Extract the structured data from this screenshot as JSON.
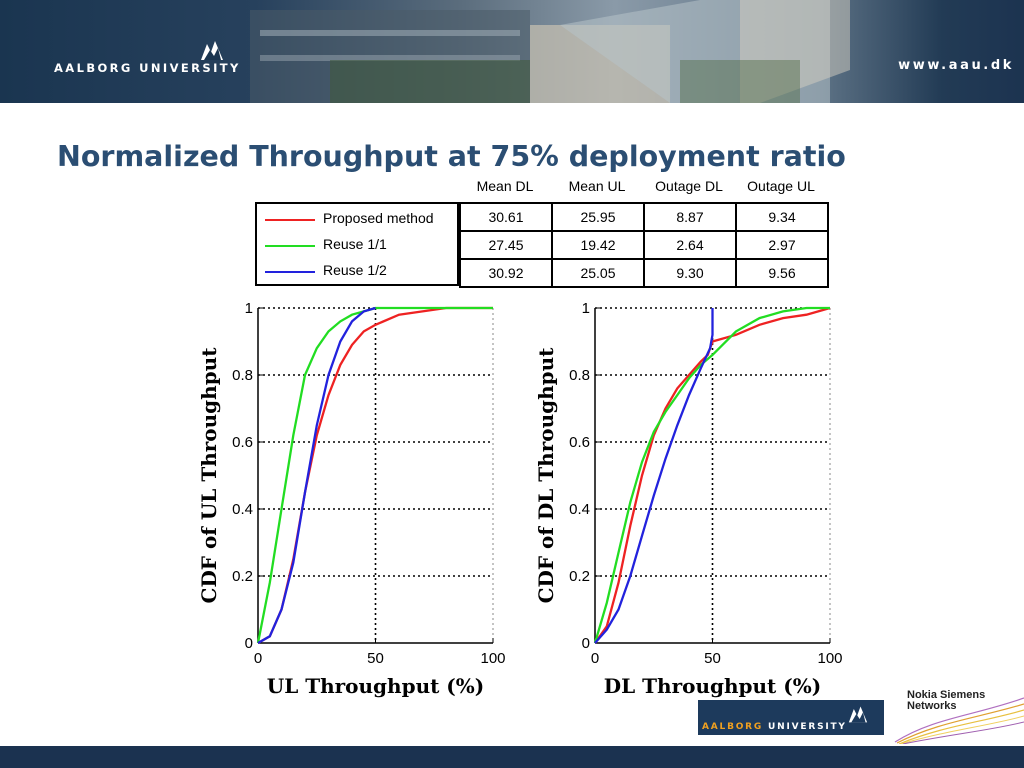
{
  "header": {
    "brand_part1": "AALBORG",
    "brand_part2": "UNIVERSITY",
    "url": "www.aau.dk"
  },
  "title": "Normalized Throughput at 75% deployment ratio",
  "table": {
    "columns": [
      "Mean DL",
      "Mean UL",
      "Outage DL",
      "Outage UL"
    ],
    "rows": [
      {
        "label": "Proposed method",
        "color": "#ee2222",
        "values": [
          "30.61",
          "25.95",
          "8.87",
          "9.34"
        ]
      },
      {
        "label": "Reuse 1/1",
        "color": "#22dd22",
        "values": [
          "27.45",
          "19.42",
          "2.64",
          "2.97"
        ]
      },
      {
        "label": "Reuse 1/2",
        "color": "#2222dd",
        "values": [
          "30.92",
          "25.05",
          "9.30",
          "9.56"
        ]
      }
    ]
  },
  "chart_data": [
    {
      "type": "line",
      "xlabel": "UL Throughput (%)",
      "ylabel": "CDF of UL Throughput",
      "xlim": [
        0,
        100
      ],
      "ylim": [
        0,
        1
      ],
      "xticks": [
        "0",
        "50",
        "100"
      ],
      "yticks": [
        "0",
        "0.2",
        "0.4",
        "0.6",
        "0.8",
        "1"
      ],
      "grid": true,
      "series": [
        {
          "name": "Proposed method",
          "color": "#ee2222",
          "x": [
            0,
            5,
            10,
            15,
            20,
            25,
            30,
            35,
            40,
            45,
            50,
            60,
            70,
            80,
            90,
            100
          ],
          "y": [
            0,
            0.02,
            0.1,
            0.25,
            0.45,
            0.62,
            0.74,
            0.83,
            0.89,
            0.93,
            0.95,
            0.98,
            0.99,
            1.0,
            1.0,
            1.0
          ]
        },
        {
          "name": "Reuse 1/1",
          "color": "#22dd22",
          "x": [
            0,
            5,
            10,
            15,
            20,
            25,
            30,
            35,
            40,
            45,
            50,
            60,
            70,
            80,
            90,
            100
          ],
          "y": [
            0,
            0.18,
            0.4,
            0.62,
            0.8,
            0.88,
            0.93,
            0.96,
            0.98,
            0.99,
            1.0,
            1.0,
            1.0,
            1.0,
            1.0,
            1.0
          ]
        },
        {
          "name": "Reuse 1/2",
          "color": "#2222dd",
          "x": [
            0,
            5,
            10,
            15,
            20,
            25,
            30,
            35,
            40,
            45,
            50
          ],
          "y": [
            0,
            0.02,
            0.1,
            0.24,
            0.45,
            0.65,
            0.8,
            0.9,
            0.96,
            0.99,
            1.0
          ]
        }
      ]
    },
    {
      "type": "line",
      "xlabel": "DL Throughput (%)",
      "ylabel": "CDF of DL Throughput",
      "xlim": [
        0,
        100
      ],
      "ylim": [
        0,
        1
      ],
      "xticks": [
        "0",
        "50",
        "100"
      ],
      "yticks": [
        "0",
        "0.2",
        "0.4",
        "0.6",
        "0.8",
        "1"
      ],
      "grid": true,
      "series": [
        {
          "name": "Proposed method",
          "color": "#ee2222",
          "x": [
            0,
            5,
            10,
            15,
            20,
            25,
            30,
            35,
            40,
            45,
            48,
            50,
            60,
            70,
            80,
            90,
            100
          ],
          "y": [
            0,
            0.05,
            0.18,
            0.35,
            0.5,
            0.62,
            0.7,
            0.76,
            0.8,
            0.84,
            0.86,
            0.9,
            0.92,
            0.95,
            0.97,
            0.98,
            1.0
          ]
        },
        {
          "name": "Reuse 1/1",
          "color": "#22dd22",
          "x": [
            0,
            5,
            10,
            15,
            20,
            25,
            30,
            35,
            40,
            45,
            50,
            60,
            70,
            80,
            90,
            100
          ],
          "y": [
            0,
            0.12,
            0.27,
            0.42,
            0.54,
            0.63,
            0.69,
            0.74,
            0.79,
            0.83,
            0.86,
            0.93,
            0.97,
            0.99,
            1.0,
            1.0
          ]
        },
        {
          "name": "Reuse 1/2",
          "color": "#2222dd",
          "x": [
            0,
            5,
            10,
            15,
            20,
            25,
            30,
            35,
            40,
            45,
            49,
            50,
            50
          ],
          "y": [
            0,
            0.04,
            0.1,
            0.2,
            0.32,
            0.44,
            0.55,
            0.65,
            0.74,
            0.82,
            0.88,
            0.92,
            1.0
          ]
        }
      ]
    }
  ],
  "footer": {
    "aau_part1": "AALBORG",
    "aau_part2": "UNIVERSITY",
    "nsn_line1": "Nokia Siemens",
    "nsn_line2": "Networks"
  }
}
